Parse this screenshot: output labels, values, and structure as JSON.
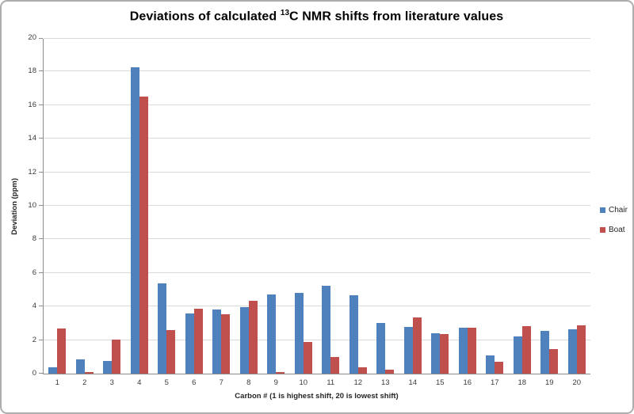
{
  "title": {
    "pre": "Deviations of calculated ",
    "sup": "13",
    "post": "C NMR shifts from literature values"
  },
  "chart_data": {
    "type": "bar",
    "title": "Deviations of calculated 13C NMR shifts from literature values",
    "categories": [
      "1",
      "2",
      "3",
      "4",
      "5",
      "6",
      "7",
      "8",
      "9",
      "10",
      "11",
      "12",
      "13",
      "14",
      "15",
      "16",
      "17",
      "18",
      "19",
      "20"
    ],
    "series": [
      {
        "name": "Chair",
        "color": "#4F81BD",
        "values": [
          0.4,
          0.85,
          0.75,
          18.25,
          5.4,
          3.6,
          3.8,
          3.95,
          4.7,
          4.8,
          5.25,
          4.65,
          3.0,
          2.8,
          2.4,
          2.75,
          1.1,
          2.2,
          2.55,
          2.65
        ]
      },
      {
        "name": "Boat",
        "color": "#C0504D",
        "values": [
          2.7,
          0.1,
          2.05,
          16.5,
          2.6,
          3.85,
          3.55,
          4.35,
          0.1,
          1.9,
          1.0,
          0.4,
          0.25,
          3.35,
          2.35,
          2.75,
          0.7,
          2.85,
          1.45,
          2.9
        ]
      }
    ],
    "xlabel": "Carbon # (1 is highest shift, 20 is lowest shift)",
    "ylabel": "Deviation (ppm)",
    "ylim": [
      0,
      20
    ],
    "y_tick_step": 2,
    "y_ticks": [
      0,
      2,
      4,
      6,
      8,
      10,
      12,
      14,
      16,
      18,
      20
    ],
    "grid": true,
    "legend_position": "right"
  },
  "colors": {
    "chair": "#4F81BD",
    "boat": "#C0504D",
    "gridline": "#d9d9d9",
    "axis_line": "#8c8c8c",
    "border": "#adadad",
    "text": "#262626"
  }
}
